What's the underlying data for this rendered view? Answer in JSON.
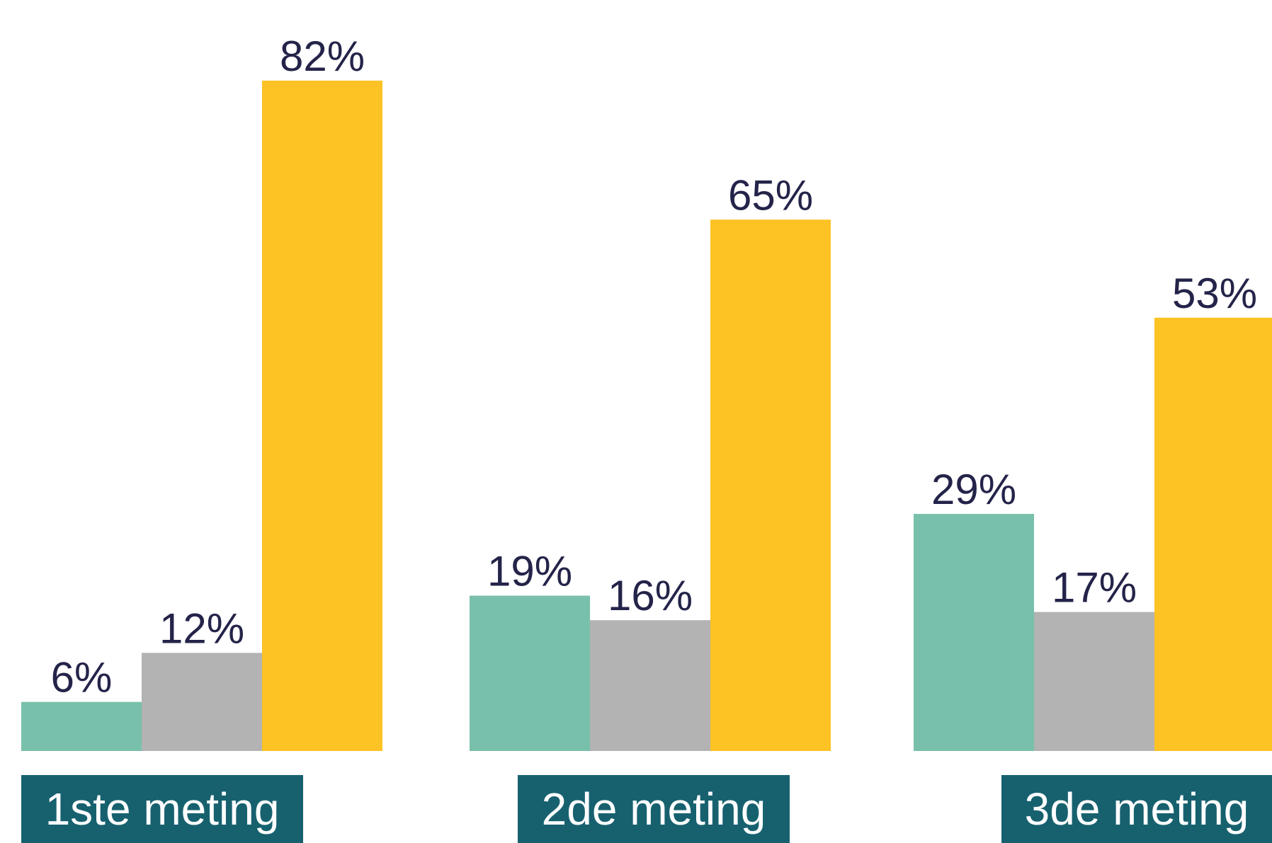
{
  "chart_data": {
    "type": "bar",
    "categories": [
      "1ste meting",
      "2de meting",
      "3de meting"
    ],
    "series": [
      {
        "values": [
          6,
          19,
          29
        ],
        "color": "#78c0ab"
      },
      {
        "values": [
          12,
          16,
          17
        ],
        "color": "#b3b3b3"
      },
      {
        "values": [
          82,
          65,
          53
        ],
        "color": "#fdc224"
      }
    ],
    "value_labels": [
      [
        "6%",
        "19%",
        "29%"
      ],
      [
        "12%",
        "16%",
        "17%"
      ],
      [
        "82%",
        "65%",
        "53%"
      ]
    ],
    "category_label_color": "#17616f",
    "value_label_color": "#24244a",
    "ylim": [
      0,
      100
    ],
    "grid": false,
    "title": "",
    "xlabel": "",
    "ylabel": ""
  }
}
